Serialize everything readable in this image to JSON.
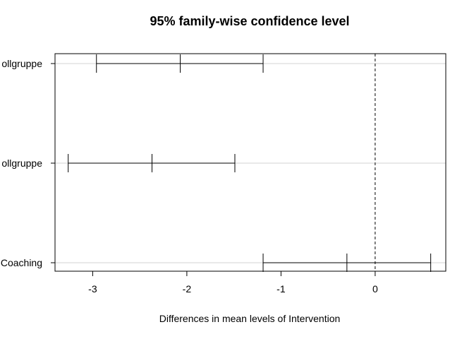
{
  "chart_data": {
    "type": "interval",
    "title": "95% family-wise confidence level",
    "xlabel": "Differences in mean levels of Intervention",
    "ylabel": "",
    "xlim": [
      -3.4,
      0.75
    ],
    "xticks": [
      -3,
      -2,
      -1,
      0
    ],
    "xtick_labels": [
      "-3",
      "-2",
      "-1",
      "0"
    ],
    "reference_line": 0,
    "grid": "horizontal at each comparison",
    "comparisons": [
      {
        "label": "ollgruppe",
        "lwr": -2.96,
        "estimate": -2.07,
        "upr": -1.19
      },
      {
        "label": "ollgruppe",
        "lwr": -3.26,
        "estimate": -2.37,
        "upr": -1.49
      },
      {
        "label": "Coaching",
        "lwr": -1.19,
        "estimate": -0.3,
        "upr": 0.59
      }
    ]
  }
}
